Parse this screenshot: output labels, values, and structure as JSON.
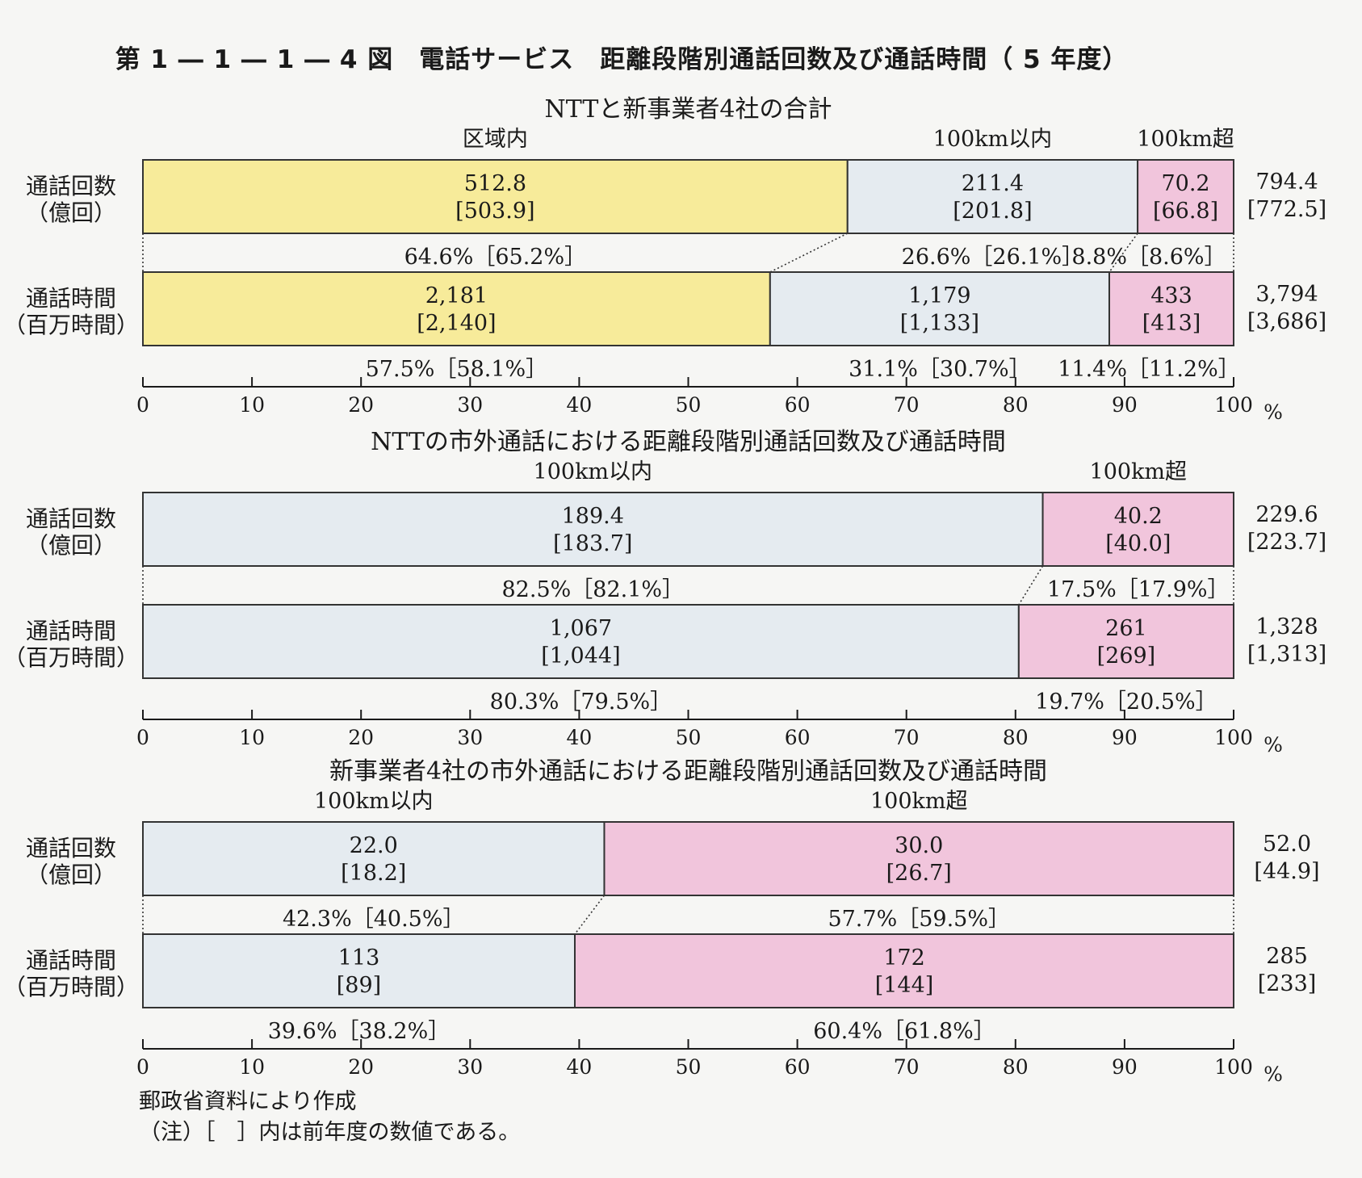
{
  "title": "第 1 ― 1 ― 1 ― 4 図　電話サービス　距離段階別通話回数及び通話時間（ 5 年度）",
  "source": "郵政省資料により作成",
  "note": "（注）［　］内は前年度の数値である。",
  "row_labels": {
    "calls": [
      "通話回数",
      "（億回）"
    ],
    "time": [
      "通話時間",
      "（百万時間）"
    ]
  },
  "axis": {
    "ticks": [
      0,
      10,
      20,
      30,
      40,
      50,
      60,
      70,
      80,
      90,
      100
    ],
    "unit": "%"
  },
  "colors": {
    "区域内": "#f7eb9a",
    "100km以内": "#e5ebf0",
    "100km超": "#f1c5dc",
    "bar_border": "#333333"
  },
  "chart_data": [
    {
      "type": "bar",
      "orientation": "horizontal-stacked-100",
      "title": "NTTと新事業者4社の合計",
      "categories": [
        "区域内",
        "100km以内",
        "100km超"
      ],
      "xlim": [
        0,
        100
      ],
      "rows": [
        {
          "key": "calls",
          "pct": [
            64.6,
            26.6,
            8.8
          ],
          "value_labels": [
            "512.8",
            "211.4",
            "70.2"
          ],
          "prev_labels": [
            "[503.9]",
            "[201.8]",
            "[66.8]"
          ],
          "pct_labels": [
            "64.6%［65.2%］",
            "26.6%［26.1%］",
            "8.8%［8.6%］"
          ],
          "total": "794.4",
          "total_prev": "[772.5]"
        },
        {
          "key": "time",
          "pct": [
            57.5,
            31.1,
            11.4
          ],
          "value_labels": [
            "2,181",
            "1,179",
            "433"
          ],
          "prev_labels": [
            "[2,140]",
            "[1,133]",
            "[413]"
          ],
          "pct_labels": [
            "57.5%［58.1%］",
            "31.1%［30.7%］",
            "11.4%［11.2%］"
          ],
          "total": "3,794",
          "total_prev": "[3,686]"
        }
      ]
    },
    {
      "type": "bar",
      "orientation": "horizontal-stacked-100",
      "title": "NTTの市外通話における距離段階別通話回数及び通話時間",
      "categories": [
        "100km以内",
        "100km超"
      ],
      "xlim": [
        0,
        100
      ],
      "rows": [
        {
          "key": "calls",
          "pct": [
            82.5,
            17.5
          ],
          "value_labels": [
            "189.4",
            "40.2"
          ],
          "prev_labels": [
            "[183.7]",
            "[40.0]"
          ],
          "pct_labels": [
            "82.5%［82.1%］",
            "17.5%［17.9%］"
          ],
          "total": "229.6",
          "total_prev": "[223.7]"
        },
        {
          "key": "time",
          "pct": [
            80.3,
            19.7
          ],
          "value_labels": [
            "1,067",
            "261"
          ],
          "prev_labels": [
            "[1,044]",
            "[269]"
          ],
          "pct_labels": [
            "80.3%［79.5%］",
            "19.7%［20.5%］"
          ],
          "total": "1,328",
          "total_prev": "[1,313]"
        }
      ]
    },
    {
      "type": "bar",
      "orientation": "horizontal-stacked-100",
      "title": "新事業者4社の市外通話における距離段階別通話回数及び通話時間",
      "categories": [
        "100km以内",
        "100km超"
      ],
      "xlim": [
        0,
        100
      ],
      "rows": [
        {
          "key": "calls",
          "pct": [
            42.3,
            57.7
          ],
          "value_labels": [
            "22.0",
            "30.0"
          ],
          "prev_labels": [
            "[18.2]",
            "[26.7]"
          ],
          "pct_labels": [
            "42.3%［40.5%］",
            "57.7%［59.5%］"
          ],
          "total": "52.0",
          "total_prev": "[44.9]"
        },
        {
          "key": "time",
          "pct": [
            39.6,
            60.4
          ],
          "value_labels": [
            "113",
            "172"
          ],
          "prev_labels": [
            "[89]",
            "[144]"
          ],
          "pct_labels": [
            "39.6%［38.2%］",
            "60.4%［61.8%］"
          ],
          "total": "285",
          "total_prev": "[233]"
        }
      ]
    }
  ]
}
